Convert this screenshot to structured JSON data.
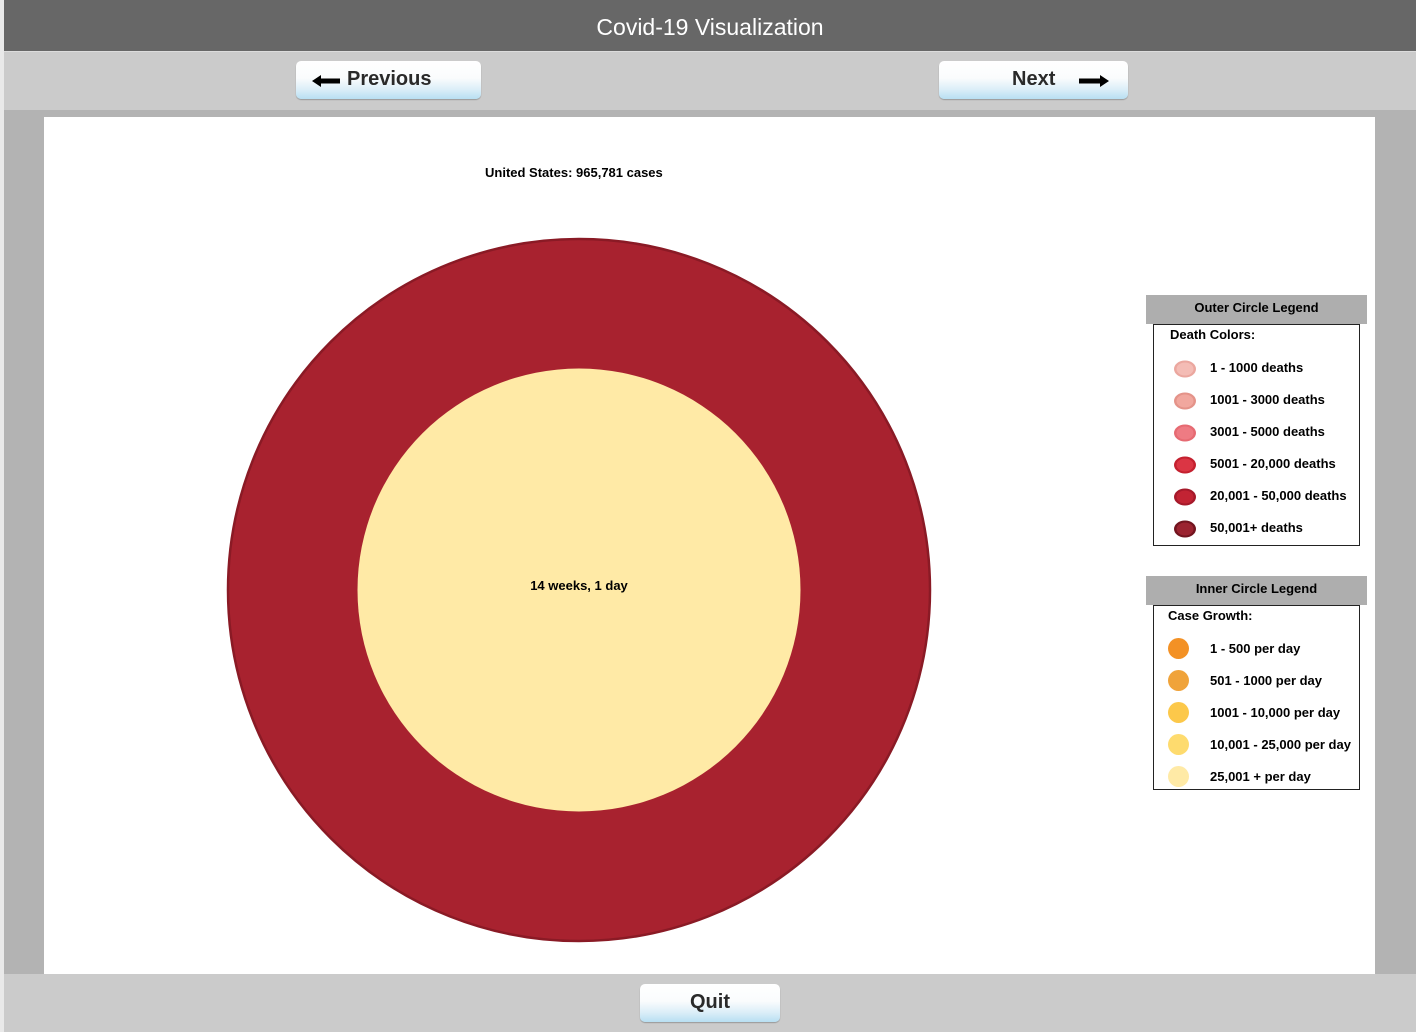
{
  "window": {
    "title": "Covid-19 Visualization"
  },
  "toolbar": {
    "previous_label": "Previous",
    "next_label": "Next"
  },
  "footer": {
    "quit_label": "Quit"
  },
  "visualization": {
    "headline": "United States: 965,781 cases",
    "center_label": "14 weeks, 1 day",
    "outer_circle_color": "#a8222f",
    "outer_circle_border": "#8a1a25",
    "inner_circle_color": "#ffeaa6"
  },
  "outer_legend": {
    "title": "Outer Circle Legend",
    "subtitle": "Death Colors:",
    "items": [
      {
        "label": "1 - 1000 deaths",
        "fill": "#f4bcb5",
        "ring": "#eba79f"
      },
      {
        "label": "1001 - 3000 deaths",
        "fill": "#f1a79e",
        "ring": "#e49389"
      },
      {
        "label": "3001 - 5000 deaths",
        "fill": "#ee7b83",
        "ring": "#e66a72"
      },
      {
        "label": "5001 - 20,000 deaths",
        "fill": "#db3544",
        "ring": "#c4202f"
      },
      {
        "label": "20,001 - 50,000 deaths",
        "fill": "#c22333",
        "ring": "#a5192a"
      },
      {
        "label": "50,001+ deaths",
        "fill": "#9b2330",
        "ring": "#72141f"
      }
    ]
  },
  "inner_legend": {
    "title": "Inner Circle Legend",
    "subtitle": "Case Growth:",
    "items": [
      {
        "label": "1 - 500 per day",
        "fill": "#f39125"
      },
      {
        "label": "501 - 1000 per day",
        "fill": "#f0a33a"
      },
      {
        "label": "1001 - 10,000 per day",
        "fill": "#fcc84a"
      },
      {
        "label": "10,001 - 25,000 per day",
        "fill": "#fedb6e"
      },
      {
        "label": "25,001 + per day",
        "fill": "#ffeaa6"
      }
    ]
  }
}
